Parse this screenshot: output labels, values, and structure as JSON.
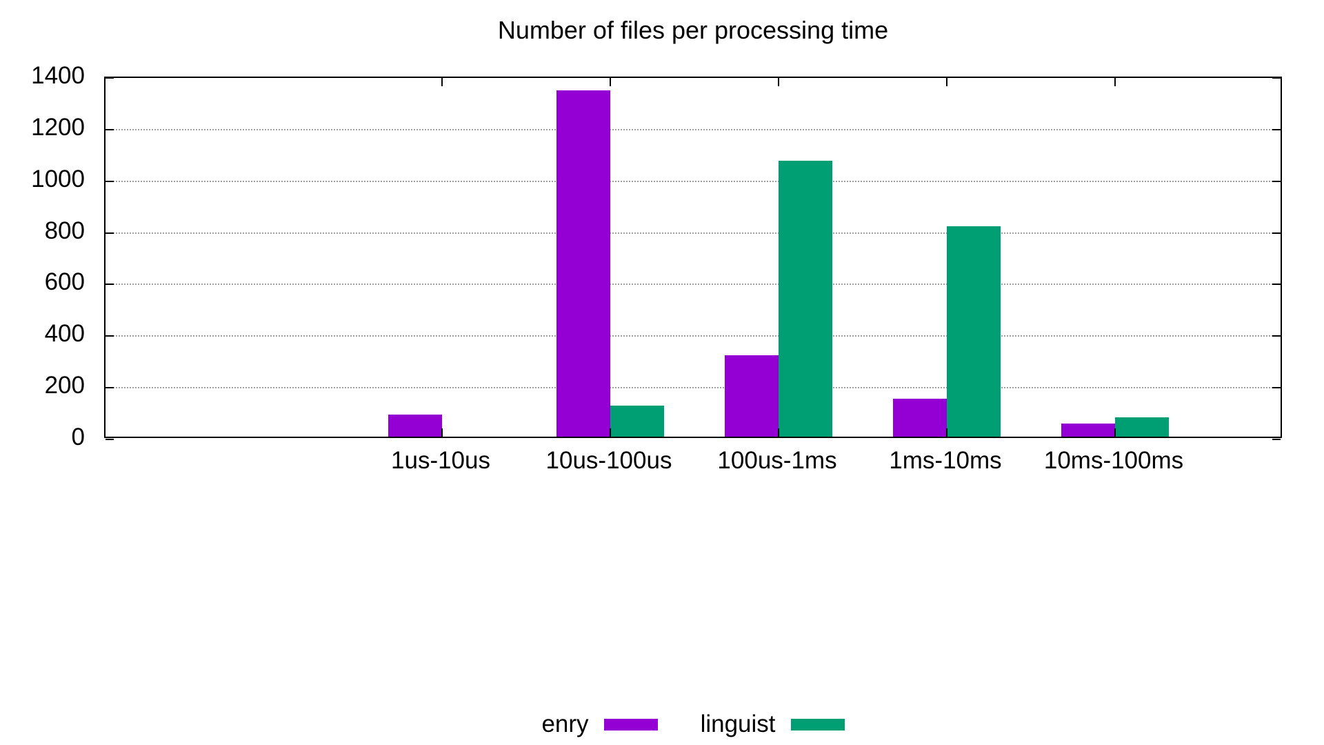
{
  "title": "Number of files per processing time",
  "colors": {
    "enry": "#9400d3",
    "linguist": "#009e73",
    "grid": "#9e9e9e",
    "border": "#000000",
    "background": "#ffffff"
  },
  "legend": {
    "entries": [
      {
        "label": "enry",
        "color": "#9400d3"
      },
      {
        "label": "linguist",
        "color": "#009e73"
      }
    ],
    "position": "below-chart-centered"
  },
  "chart_data": {
    "type": "bar",
    "title": "Number of files per processing time",
    "xlabel": "",
    "ylabel": "",
    "categories": [
      "1us-10us",
      "10us-100us",
      "100us-1ms",
      "1ms-10ms",
      "10ms-100ms"
    ],
    "series": [
      {
        "name": "enry",
        "color": "#9400d3",
        "values": [
          85,
          1340,
          315,
          148,
          50
        ]
      },
      {
        "name": "linguist",
        "color": "#009e73",
        "values": [
          0,
          120,
          1070,
          815,
          74
        ]
      }
    ],
    "ylim": [
      0,
      1400
    ],
    "ytick_step": 200,
    "ytick_labels": [
      "0",
      "200",
      "400",
      "600",
      "800",
      "1000",
      "1200",
      "1400"
    ],
    "grid": "horizontal-dotted",
    "ticks": "inward-mirrored-all-borders",
    "legend_position": "bottom-center"
  }
}
